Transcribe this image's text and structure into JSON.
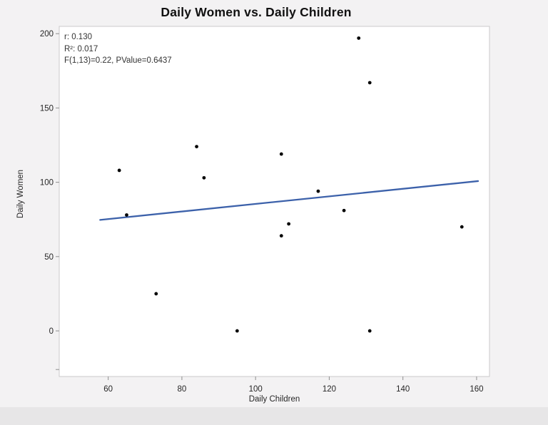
{
  "figure": {
    "background": "#f3f2f3",
    "plot_background": "#ffffff",
    "frame_color": "#cbcacb",
    "tick_color": "#8f8f8f",
    "text_color": "#262626",
    "bottom_band_color": "#e7e6e7"
  },
  "chart_data": {
    "type": "scatter",
    "title": "Daily Women vs. Daily Children",
    "xlabel": "Daily Children",
    "ylabel": "Daily Women",
    "x_ticks": [
      60,
      80,
      100,
      120,
      140,
      160
    ],
    "y_ticks": [
      0,
      50,
      100,
      150,
      200
    ],
    "y_minor_ticks": [
      -26
    ],
    "xlim": [
      46.7,
      163.5
    ],
    "ylim": [
      -30.7,
      204.9
    ],
    "grid": false,
    "legend": false,
    "marker_color": "#000000",
    "marker_radius": 2.4,
    "points": [
      {
        "x": 63,
        "y": 108
      },
      {
        "x": 65,
        "y": 78
      },
      {
        "x": 73,
        "y": 25
      },
      {
        "x": 84,
        "y": 124
      },
      {
        "x": 86,
        "y": 103
      },
      {
        "x": 95,
        "y": 0
      },
      {
        "x": 107,
        "y": 119
      },
      {
        "x": 107,
        "y": 64
      },
      {
        "x": 109,
        "y": 72
      },
      {
        "x": 117,
        "y": 94
      },
      {
        "x": 124,
        "y": 81
      },
      {
        "x": 128,
        "y": 197
      },
      {
        "x": 131,
        "y": 167
      },
      {
        "x": 131,
        "y": 0
      },
      {
        "x": 156,
        "y": 70
      }
    ],
    "regression_line": {
      "color": "#3c61aa",
      "width": 2.3,
      "x1": 57.8,
      "y1": 74.7,
      "x2": 160.4,
      "y2": 100.8
    },
    "stats_annotation": {
      "lines": [
        "r: 0.130",
        "R²: 0.017",
        "F(1,13)=0.22, PValue=0.6437"
      ],
      "r": "0.130",
      "r_squared": "0.017",
      "f_statistic": "F(1,13)=0.22",
      "p_value": "0.6437"
    }
  }
}
